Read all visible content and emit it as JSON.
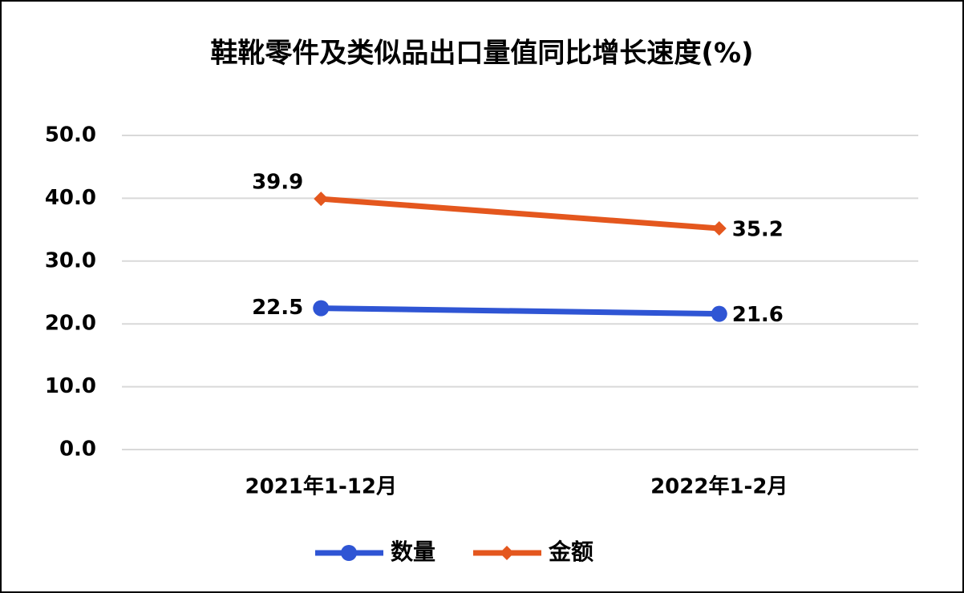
{
  "chart_data": {
    "type": "line",
    "title": "鞋靴零件及类似品出口量值同比增长速度(%)",
    "categories": [
      "2021年1-12月",
      "2022年1-2月"
    ],
    "series": [
      {
        "name": "数量",
        "color": "#2f55d4",
        "marker": "circle",
        "values": [
          22.5,
          21.6
        ]
      },
      {
        "name": "金额",
        "color": "#e4571e",
        "marker": "diamond",
        "values": [
          39.9,
          35.2
        ]
      }
    ],
    "ylim": [
      0,
      50
    ],
    "yticks": [
      {
        "value": 0,
        "label": "0.0"
      },
      {
        "value": 10,
        "label": "10.0"
      },
      {
        "value": 20,
        "label": "20.0"
      },
      {
        "value": 30,
        "label": "30.0"
      },
      {
        "value": 40,
        "label": "40.0"
      },
      {
        "value": 50,
        "label": "50.0"
      }
    ],
    "grid": true,
    "legend": "bottom"
  }
}
